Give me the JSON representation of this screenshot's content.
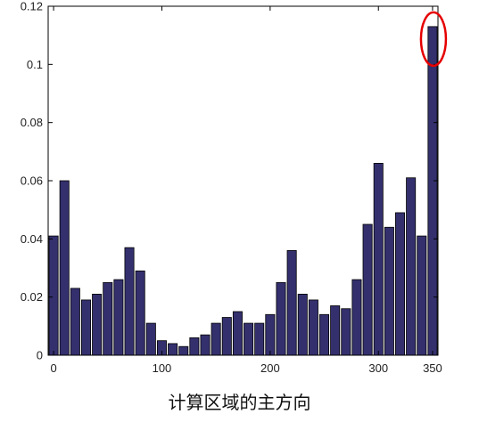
{
  "caption": "计算区域的主方向",
  "chart_data": {
    "type": "bar",
    "bar_color": "#34306e",
    "bar_edge_color": "#000000",
    "highlight_color": "#e60000",
    "highlight_index": 35,
    "x": [
      0,
      10,
      20,
      30,
      40,
      50,
      60,
      70,
      80,
      90,
      100,
      110,
      120,
      130,
      140,
      150,
      160,
      170,
      180,
      190,
      200,
      210,
      220,
      230,
      240,
      250,
      260,
      270,
      280,
      290,
      300,
      310,
      320,
      330,
      340,
      350
    ],
    "values": [
      0.041,
      0.06,
      0.023,
      0.019,
      0.021,
      0.025,
      0.026,
      0.037,
      0.029,
      0.011,
      0.005,
      0.004,
      0.003,
      0.006,
      0.007,
      0.011,
      0.013,
      0.015,
      0.011,
      0.011,
      0.014,
      0.025,
      0.036,
      0.021,
      0.019,
      0.014,
      0.017,
      0.016,
      0.026,
      0.045,
      0.066,
      0.044,
      0.049,
      0.061,
      0.041,
      0.113
    ],
    "xlim": [
      -5,
      355
    ],
    "ylim": [
      0,
      0.12
    ],
    "xticks": [
      0,
      100,
      200,
      300,
      350
    ],
    "xtick_labels": [
      "0",
      "100",
      "200",
      "300",
      "350"
    ],
    "yticks": [
      0,
      0.02,
      0.04,
      0.06,
      0.08,
      0.1,
      0.12
    ],
    "ytick_labels": [
      "0",
      "0.02",
      "0.04",
      "0.06",
      "0.08",
      "0.1",
      "0.12"
    ],
    "title": "",
    "xlabel": "",
    "ylabel": "",
    "grid": false
  }
}
